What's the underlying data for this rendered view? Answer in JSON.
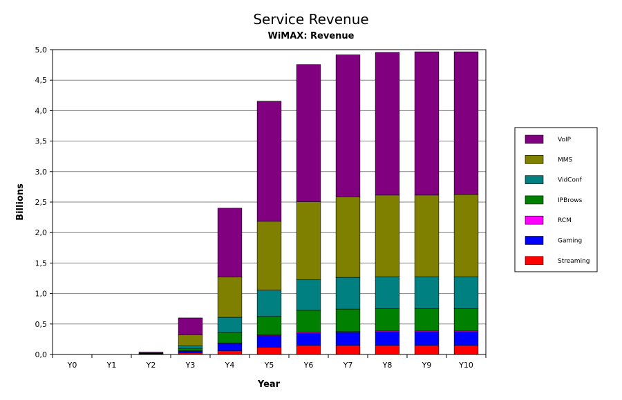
{
  "chart_data": {
    "type": "bar",
    "stacked": true,
    "title": "Service Revenue",
    "subtitle": "WiMAX: Revenue",
    "xlabel": "Year",
    "ylabel": "Billions",
    "ylim": [
      0,
      5
    ],
    "yticks": [
      "0,0",
      "0,5",
      "1,0",
      "1,5",
      "2,0",
      "2,5",
      "3,0",
      "3,5",
      "4,0",
      "4,5",
      "5,0"
    ],
    "grid": true,
    "legend_position": "right",
    "categories": [
      "Y0",
      "Y1",
      "Y2",
      "Y3",
      "Y4",
      "Y5",
      "Y6",
      "Y7",
      "Y8",
      "Y9",
      "Y10"
    ],
    "series": [
      {
        "name": "Streaming",
        "color": "#ff0000",
        "values": [
          0,
          0,
          0.003,
          0.025,
          0.06,
          0.12,
          0.15,
          0.15,
          0.15,
          0.15,
          0.15
        ]
      },
      {
        "name": "Gaming",
        "color": "#0000ff",
        "values": [
          0,
          0,
          0.003,
          0.03,
          0.12,
          0.19,
          0.2,
          0.21,
          0.22,
          0.22,
          0.22
        ]
      },
      {
        "name": "RCM",
        "color": "#ff00ff",
        "values": [
          0,
          0,
          0.001,
          0.005,
          0.01,
          0.015,
          0.015,
          0.015,
          0.015,
          0.015,
          0.015
        ]
      },
      {
        "name": "IPBrows",
        "color": "#008000",
        "values": [
          0,
          0,
          0.003,
          0.04,
          0.17,
          0.3,
          0.36,
          0.37,
          0.37,
          0.37,
          0.37
        ]
      },
      {
        "name": "VidConf",
        "color": "#008080",
        "values": [
          0,
          0,
          0.003,
          0.04,
          0.25,
          0.43,
          0.5,
          0.52,
          0.52,
          0.52,
          0.52
        ]
      },
      {
        "name": "MMS",
        "color": "#808000",
        "values": [
          0,
          0,
          0.007,
          0.18,
          0.66,
          1.13,
          1.28,
          1.32,
          1.34,
          1.34,
          1.35
        ]
      },
      {
        "name": "VoIP",
        "color": "#800080",
        "values": [
          0,
          0,
          0.02,
          0.28,
          1.13,
          1.97,
          2.25,
          2.33,
          2.34,
          2.35,
          2.34
        ]
      }
    ]
  }
}
